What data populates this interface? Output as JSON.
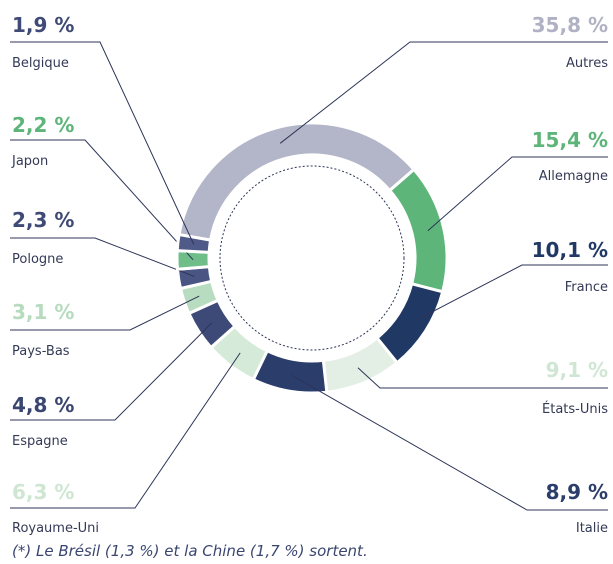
{
  "chart_data": {
    "type": "donut",
    "categories": [
      "Autres",
      "Allemagne",
      "France",
      "États-Unis",
      "Italie",
      "Royaume-Uni",
      "Espagne",
      "Pays-Bas",
      "Pologne",
      "Japon",
      "Belgique"
    ],
    "values": [
      35.8,
      15.4,
      10.1,
      9.1,
      8.9,
      6.3,
      4.8,
      3.1,
      2.3,
      2.2,
      1.9
    ],
    "value_labels": [
      "35,8 %",
      "15,4 %",
      "10,1 %",
      "9,1 %",
      "8,9 %",
      "6,3 %",
      "4,8 %",
      "3,1 %",
      "2,3 %",
      "2,2 %",
      "1,9 %"
    ],
    "colors": [
      "#b3b5c8",
      "#5db57a",
      "#1f3864",
      "#e3efe5",
      "#2b3d6b",
      "#d6ead9",
      "#3d4a78",
      "#b8dcc0",
      "#4a5583",
      "#6fbd88",
      "#4f5a88"
    ],
    "label_colors": [
      "#b0b2c4",
      "#5db57a",
      "#1f3864",
      "#d0e6d4",
      "#2b3d6b",
      "#cfe6d3",
      "#3a4670",
      "#b6dbbe",
      "#3f4a76",
      "#5db57a",
      "#3f4a76"
    ],
    "footnote": "(*) Le Brésil (1,3 %) et la Chine (1,7 %) sortent."
  }
}
